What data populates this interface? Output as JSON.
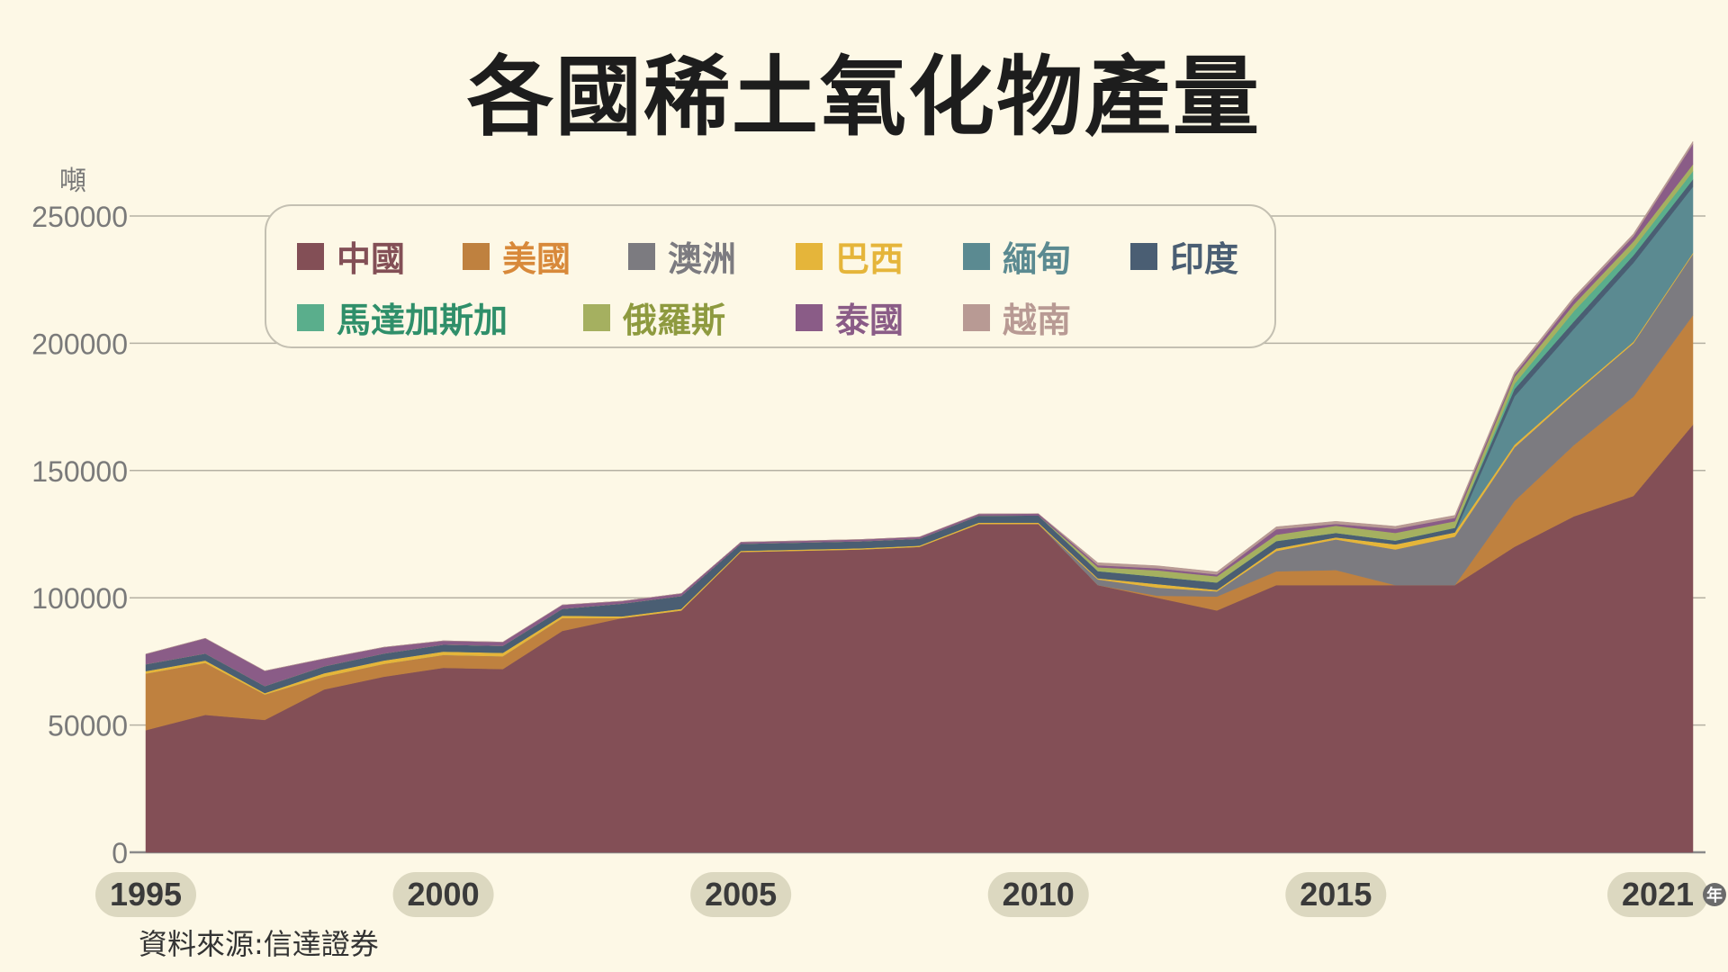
{
  "chart_data": {
    "type": "area",
    "stacked": true,
    "title": "各國稀土氧化物產量",
    "ylabel": "噸",
    "xlabel": "年",
    "ylim": [
      0,
      275000
    ],
    "yticks": [
      0,
      50000,
      100000,
      150000,
      200000,
      250000
    ],
    "ytick_labels": [
      "0",
      "50000",
      "100000",
      "150000",
      "200000",
      "250000"
    ],
    "xtick_labels": [
      "1995",
      "2000",
      "2005",
      "2010",
      "2015",
      "2021"
    ],
    "xtick_values": [
      1995,
      2000,
      2005,
      2010,
      2015,
      2021
    ],
    "grid": true,
    "legend_placement": "top",
    "x": [
      1995,
      1996,
      1997,
      1998,
      1999,
      2000,
      2001,
      2002,
      2003,
      2004,
      2005,
      2006,
      2007,
      2008,
      2009,
      2010,
      2011,
      2012,
      2013,
      2014,
      2015,
      2016,
      2017,
      2018,
      2019,
      2020,
      2021
    ],
    "series": [
      {
        "name": "中國",
        "color": "#834f56",
        "text_color": "#834f56",
        "values": [
          48000,
          54000,
          52000,
          64000,
          69000,
          72500,
          72000,
          87000,
          92000,
          95000,
          118000,
          118500,
          119000,
          120000,
          129000,
          129000,
          105000,
          100000,
          95000,
          105000,
          105000,
          105000,
          105000,
          120000,
          132000,
          140000,
          168000
        ]
      },
      {
        "name": "美國",
        "color": "#bf813f",
        "text_color": "#d8893a",
        "values": [
          22200,
          20400,
          10000,
          5000,
          5000,
          5000,
          5000,
          5000,
          0,
          0,
          0,
          0,
          0,
          0,
          0,
          0,
          0,
          800,
          5500,
          5400,
          5900,
          0,
          0,
          18000,
          28000,
          39000,
          43000
        ]
      },
      {
        "name": "澳洲",
        "color": "#7c7b80",
        "text_color": "#7c7b80",
        "values": [
          0,
          0,
          0,
          0,
          0,
          0,
          0,
          0,
          0,
          0,
          0,
          0,
          0,
          0,
          0,
          0,
          2200,
          3200,
          2000,
          8000,
          12000,
          14000,
          19000,
          21000,
          20000,
          21000,
          24000
        ]
      },
      {
        "name": "巴西",
        "color": "#e5b53a",
        "text_color": "#e5b53a",
        "values": [
          1000,
          1000,
          600,
          1400,
          1400,
          1400,
          1400,
          1000,
          700,
          700,
          500,
          500,
          500,
          500,
          550,
          550,
          500,
          1400,
          600,
          1000,
          880,
          2000,
          1700,
          1100,
          710,
          600,
          500
        ]
      },
      {
        "name": "緬甸",
        "color": "#5b8a91",
        "text_color": "#5b8a91",
        "values": [
          0,
          0,
          0,
          0,
          0,
          0,
          0,
          0,
          0,
          0,
          0,
          0,
          0,
          0,
          0,
          0,
          0,
          0,
          0,
          0,
          0,
          0,
          0,
          19000,
          25000,
          31000,
          26000
        ]
      },
      {
        "name": "印度",
        "color": "#4a5e73",
        "text_color": "#4a5e73",
        "values": [
          2700,
          2700,
          2700,
          2700,
          2700,
          2700,
          2700,
          2700,
          5000,
          5000,
          2700,
          2700,
          2700,
          2700,
          2700,
          2800,
          2800,
          2900,
          2900,
          2900,
          1700,
          1500,
          1800,
          2900,
          2900,
          2900,
          2900
        ]
      },
      {
        "name": "馬達加斯加",
        "color": "#5aae8c",
        "text_color": "#2f8f6a",
        "values": [
          0,
          0,
          0,
          0,
          0,
          0,
          0,
          0,
          0,
          0,
          0,
          0,
          0,
          0,
          0,
          0,
          0,
          0,
          0,
          0,
          0,
          0,
          0,
          2000,
          4000,
          2800,
          3200
        ]
      },
      {
        "name": "俄羅斯",
        "color": "#a5b060",
        "text_color": "#8e9a3f",
        "values": [
          0,
          0,
          0,
          0,
          0,
          0,
          0,
          0,
          0,
          0,
          0,
          0,
          0,
          0,
          0,
          0,
          1500,
          2500,
          2400,
          2500,
          2800,
          3000,
          2600,
          2700,
          2700,
          2700,
          2700
        ]
      },
      {
        "name": "泰國",
        "color": "#8a5c87",
        "text_color": "#8a5c87",
        "values": [
          4000,
          6000,
          6000,
          3000,
          2500,
          1500,
          1500,
          1500,
          1000,
          1000,
          700,
          700,
          700,
          700,
          700,
          700,
          800,
          800,
          800,
          2100,
          760,
          1600,
          1300,
          1000,
          1900,
          2000,
          8000
        ]
      },
      {
        "name": "越南",
        "color": "#b89a94",
        "text_color": "#b89a94",
        "values": [
          0,
          0,
          0,
          0,
          0,
          0,
          0,
          0,
          0,
          0,
          0,
          0,
          0,
          0,
          0,
          0,
          1000,
          1000,
          1000,
          1000,
          1000,
          1000,
          1000,
          1000,
          1000,
          1000,
          1000
        ]
      }
    ],
    "source": "資料來源:信達證券"
  }
}
